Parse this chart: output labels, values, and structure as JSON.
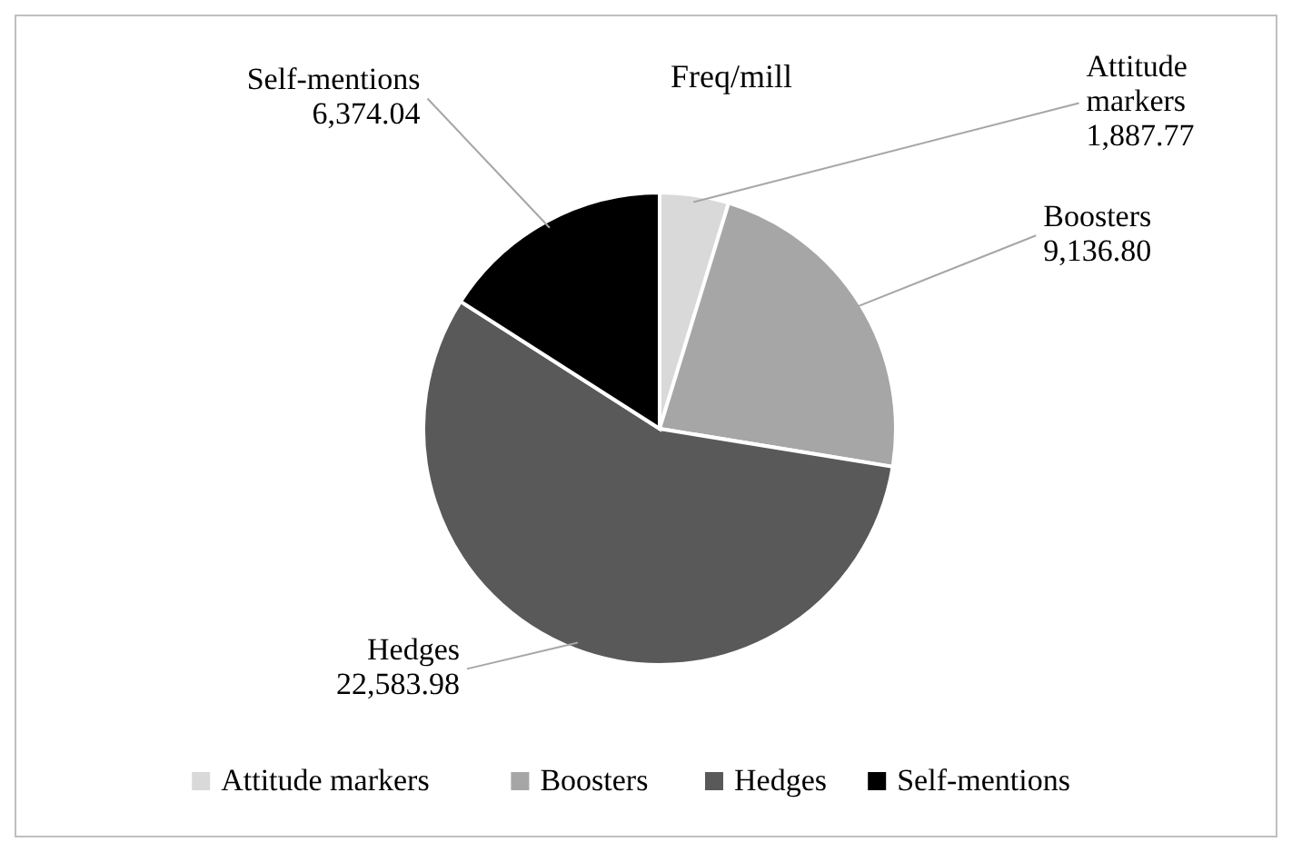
{
  "chart_data": {
    "type": "pie",
    "title": "Freq/mill",
    "categories": [
      "Attitude markers",
      "Boosters",
      "Hedges",
      "Self-mentions"
    ],
    "values": [
      1887.77,
      9136.8,
      22583.98,
      6374.04
    ],
    "value_labels": [
      "1,887.77",
      "9,136.80",
      "22,583.98",
      "6,374.04"
    ],
    "colors": [
      "#d9d9d9",
      "#a6a6a6",
      "#595959",
      "#000000"
    ],
    "legend": "bottom"
  }
}
